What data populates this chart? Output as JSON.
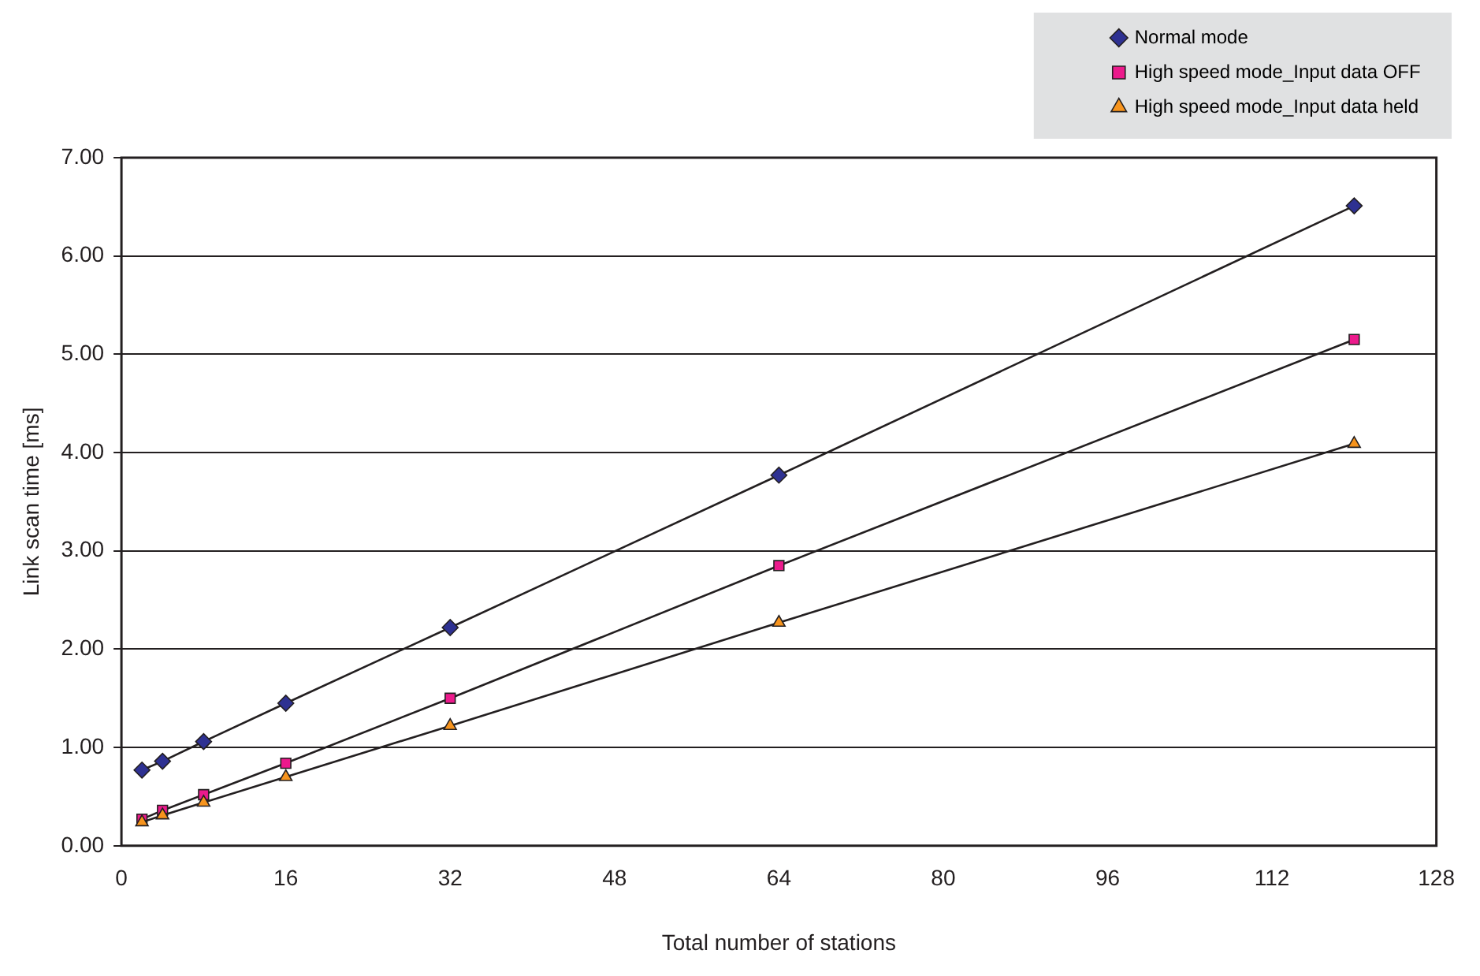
{
  "chart_data": {
    "type": "line",
    "xlabel": "Total number of stations",
    "ylabel": "Link scan time [ms]",
    "x": [
      2,
      4,
      8,
      16,
      32,
      64,
      120
    ],
    "series": [
      {
        "name": "Normal mode",
        "color": "#2e3192",
        "marker": "diamond",
        "values": [
          0.77,
          0.86,
          1.06,
          1.45,
          2.22,
          3.77,
          6.51
        ]
      },
      {
        "name": "High speed mode_Input data OFF",
        "color": "#ec1a8c",
        "marker": "square",
        "values": [
          0.27,
          0.36,
          0.52,
          0.84,
          1.5,
          2.85,
          5.15
        ]
      },
      {
        "name": "High speed mode_Input data held",
        "color": "#f7941d",
        "marker": "triangle",
        "values": [
          0.24,
          0.31,
          0.44,
          0.7,
          1.22,
          2.27,
          4.09
        ]
      }
    ],
    "xlim": [
      0,
      128
    ],
    "xticks": [
      0,
      16,
      32,
      48,
      64,
      80,
      96,
      112,
      128
    ],
    "ylim": [
      0,
      7
    ],
    "yticks": [
      {
        "value": 0,
        "label": "0.00"
      },
      {
        "value": 1,
        "label": "1.00"
      },
      {
        "value": 2,
        "label": "2.00"
      },
      {
        "value": 3,
        "label": "3.00"
      },
      {
        "value": 4,
        "label": "4.00"
      },
      {
        "value": 5,
        "label": "5.00"
      },
      {
        "value": 6,
        "label": "6.00"
      },
      {
        "value": 7,
        "label": "7.00"
      }
    ],
    "grid": "y",
    "legend": "top right",
    "line_style": "solid"
  }
}
